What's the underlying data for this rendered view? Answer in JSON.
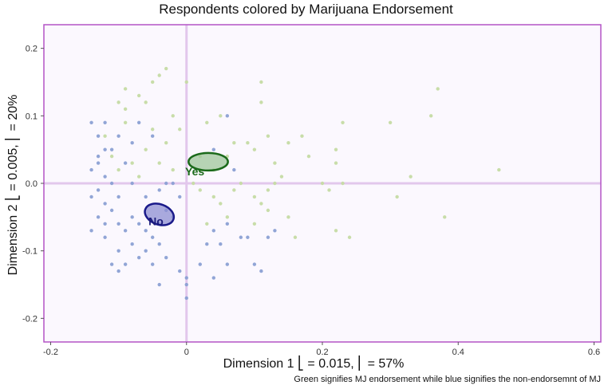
{
  "chart_data": {
    "type": "scatter",
    "title": "Respondents colored by Marijuana Endorsement",
    "xlabel": "Dimension 1  ⎣ = 0.015,  ⎢ = 57%",
    "ylabel": "Dimension 2  ⎣ = 0.005,  ⎢ = 20%",
    "caption": "Green signifies MJ endorsement while blue signifies the non-endorsemnt of MJ",
    "xlim": [
      -0.21,
      0.61
    ],
    "ylim": [
      -0.235,
      0.235
    ],
    "xticks": [
      -0.2,
      0.0,
      0.2,
      0.4,
      0.6
    ],
    "yticks": [
      -0.2,
      -0.1,
      0.0,
      0.1,
      0.2
    ],
    "xtick_labels": [
      "-0.2",
      "0",
      "0.2",
      "0.4",
      "0.6"
    ],
    "ytick_labels": [
      "-0.2",
      "-0.1",
      "0.0",
      "0.1",
      "0.2"
    ],
    "grid": false,
    "reference_lines": {
      "x": 0,
      "y": 0,
      "color": "#e2c7ec"
    },
    "colors": {
      "panel_bg": "#fbf8fe",
      "frame": "#b454c6",
      "yes_point": "#c5dba4",
      "no_point": "#8ba0d4",
      "yes_ellipse_fill": "#9fc79b",
      "yes_ellipse_stroke": "#1b6a1b",
      "no_ellipse_fill": "#8e8fd1",
      "no_ellipse_stroke": "#1a1a8a",
      "yes_label": "#1b6a1b",
      "no_label": "#1a1a7a"
    },
    "series": [
      {
        "name": "Yes",
        "color": "#c5dba4",
        "points": [
          [
            -0.03,
            0.17
          ],
          [
            -0.04,
            0.16
          ],
          [
            -0.05,
            0.15
          ],
          [
            -0.09,
            0.14
          ],
          [
            -0.07,
            0.13
          ],
          [
            -0.06,
            0.12
          ],
          [
            -0.1,
            0.12
          ],
          [
            0.0,
            0.15
          ],
          [
            0.03,
            0.09
          ],
          [
            0.05,
            0.1
          ],
          [
            0.11,
            0.15
          ],
          [
            0.11,
            0.12
          ],
          [
            0.07,
            0.06
          ],
          [
            0.09,
            0.06
          ],
          [
            0.12,
            0.07
          ],
          [
            0.15,
            0.06
          ],
          [
            0.17,
            0.07
          ],
          [
            0.18,
            0.04
          ],
          [
            0.22,
            0.05
          ],
          [
            0.23,
            0.09
          ],
          [
            0.3,
            0.09
          ],
          [
            0.36,
            0.1
          ],
          [
            0.37,
            0.14
          ],
          [
            0.46,
            0.02
          ],
          [
            0.22,
            0.03
          ],
          [
            0.13,
            0.03
          ],
          [
            0.1,
            0.05
          ],
          [
            0.06,
            0.04
          ],
          [
            0.04,
            0.02
          ],
          [
            0.02,
            0.02
          ],
          [
            0.01,
            0.0
          ],
          [
            -0.02,
            0.02
          ],
          [
            -0.03,
            0.06
          ],
          [
            -0.05,
            0.08
          ],
          [
            -0.06,
            0.05
          ],
          [
            -0.08,
            0.03
          ],
          [
            -0.1,
            0.02
          ],
          [
            -0.12,
            0.07
          ],
          [
            -0.11,
            0.04
          ],
          [
            -0.09,
            0.09
          ],
          [
            -0.02,
            0.1
          ],
          [
            -0.01,
            0.08
          ],
          [
            0.02,
            -0.01
          ],
          [
            0.04,
            -0.02
          ],
          [
            0.07,
            -0.01
          ],
          [
            0.1,
            -0.02
          ],
          [
            0.11,
            -0.03
          ],
          [
            0.12,
            -0.01
          ],
          [
            0.13,
            0.0
          ],
          [
            0.2,
            0.0
          ],
          [
            0.21,
            -0.01
          ],
          [
            0.23,
            0.0
          ],
          [
            0.31,
            -0.02
          ],
          [
            0.33,
            0.01
          ],
          [
            0.38,
            -0.05
          ],
          [
            0.24,
            -0.08
          ],
          [
            0.22,
            -0.07
          ],
          [
            0.16,
            -0.08
          ],
          [
            0.15,
            -0.05
          ],
          [
            0.1,
            -0.06
          ],
          [
            0.06,
            -0.05
          ],
          [
            0.05,
            -0.03
          ],
          [
            0.03,
            -0.06
          ],
          [
            0.02,
            0.04
          ],
          [
            0.08,
            0.0
          ],
          [
            0.12,
            -0.04
          ],
          [
            0.14,
            0.01
          ],
          [
            -0.04,
            0.03
          ],
          [
            -0.07,
            0.01
          ],
          [
            -0.09,
            0.11
          ]
        ]
      },
      {
        "name": "No",
        "color": "#8ba0d4",
        "points": [
          [
            -0.14,
            0.09
          ],
          [
            -0.13,
            0.07
          ],
          [
            -0.12,
            0.05
          ],
          [
            -0.13,
            0.03
          ],
          [
            -0.14,
            0.02
          ],
          [
            -0.12,
            0.01
          ],
          [
            -0.11,
            0.0
          ],
          [
            -0.13,
            -0.01
          ],
          [
            -0.14,
            -0.02
          ],
          [
            -0.12,
            -0.03
          ],
          [
            -0.1,
            -0.02
          ],
          [
            -0.11,
            -0.04
          ],
          [
            -0.13,
            -0.05
          ],
          [
            -0.12,
            -0.06
          ],
          [
            -0.14,
            -0.07
          ],
          [
            -0.1,
            -0.06
          ],
          [
            -0.09,
            -0.07
          ],
          [
            -0.08,
            -0.05
          ],
          [
            -0.07,
            -0.06
          ],
          [
            -0.06,
            -0.07
          ],
          [
            -0.05,
            -0.08
          ],
          [
            -0.04,
            -0.06
          ],
          [
            -0.03,
            -0.04
          ],
          [
            -0.02,
            -0.05
          ],
          [
            -0.04,
            -0.09
          ],
          [
            -0.06,
            -0.1
          ],
          [
            -0.08,
            -0.09
          ],
          [
            -0.1,
            -0.1
          ],
          [
            -0.12,
            -0.08
          ],
          [
            -0.11,
            -0.12
          ],
          [
            -0.09,
            -0.12
          ],
          [
            -0.1,
            -0.13
          ],
          [
            -0.07,
            -0.11
          ],
          [
            -0.05,
            -0.12
          ],
          [
            -0.03,
            -0.11
          ],
          [
            -0.04,
            -0.15
          ],
          [
            -0.01,
            -0.13
          ],
          [
            0.0,
            -0.14
          ],
          [
            0.0,
            -0.15
          ],
          [
            0.0,
            -0.17
          ],
          [
            0.02,
            -0.12
          ],
          [
            0.04,
            -0.14
          ],
          [
            0.06,
            -0.12
          ],
          [
            0.1,
            -0.12
          ],
          [
            0.11,
            -0.13
          ],
          [
            0.12,
            -0.08
          ],
          [
            0.13,
            -0.07
          ],
          [
            0.09,
            -0.08
          ],
          [
            0.08,
            -0.08
          ],
          [
            0.06,
            -0.06
          ],
          [
            0.05,
            -0.09
          ],
          [
            0.04,
            -0.07
          ],
          [
            0.03,
            -0.09
          ],
          [
            0.07,
            0.02
          ],
          [
            0.06,
            0.1
          ],
          [
            0.04,
            0.05
          ],
          [
            -0.02,
            0.0
          ],
          [
            -0.04,
            -0.01
          ],
          [
            -0.06,
            -0.02
          ],
          [
            -0.08,
            0.0
          ],
          [
            -0.09,
            0.03
          ],
          [
            -0.11,
            0.05
          ],
          [
            -0.12,
            0.09
          ],
          [
            -0.08,
            0.06
          ],
          [
            -0.07,
            0.09
          ],
          [
            -0.1,
            0.07
          ],
          [
            -0.13,
            0.04
          ],
          [
            -0.05,
            0.07
          ],
          [
            -0.03,
            0.0
          ],
          [
            -0.01,
            -0.02
          ]
        ]
      }
    ],
    "ellipses": [
      {
        "name": "Yes",
        "label": "Yes",
        "cx": 0.032,
        "cy": 0.032,
        "rx": 0.029,
        "ry": 0.013,
        "angle": 0,
        "label_at": [
          -0.002,
          0.018
        ]
      },
      {
        "name": "No",
        "label": "No",
        "cx": -0.04,
        "cy": -0.046,
        "rx": 0.022,
        "ry": 0.015,
        "angle": 20,
        "label_at": [
          -0.056,
          -0.056
        ]
      }
    ]
  }
}
